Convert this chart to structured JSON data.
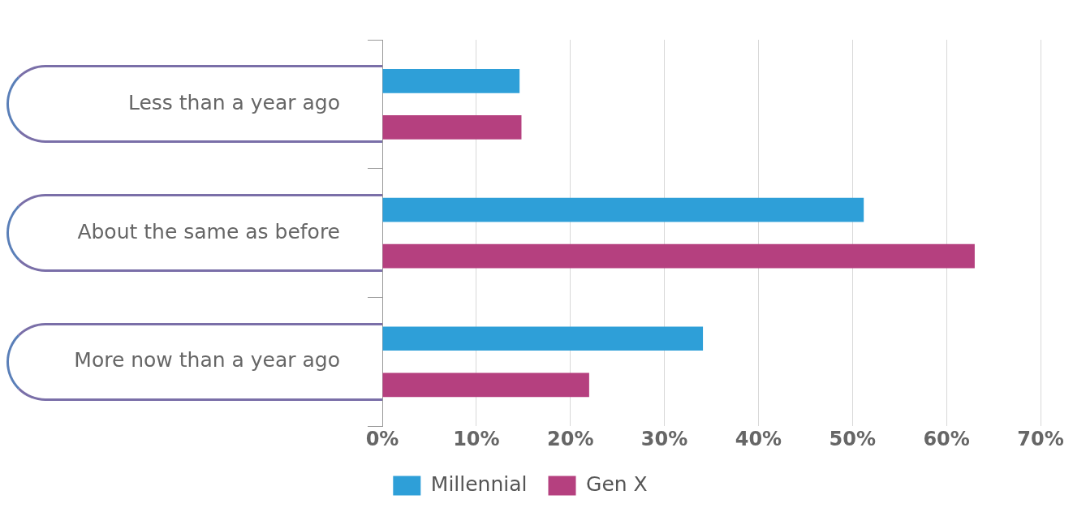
{
  "chart_data": {
    "type": "bar",
    "orientation": "horizontal",
    "categories": [
      "Less than a year ago",
      "About the same as before",
      "More now than a year ago"
    ],
    "series": [
      {
        "name": "Millennial",
        "color": "#2e9fd8",
        "values": [
          14.6,
          51.2,
          34.1
        ]
      },
      {
        "name": "Gen X",
        "color": "#b5407f",
        "values": [
          14.8,
          63.0,
          22.0
        ]
      }
    ],
    "xlim": [
      0,
      70
    ],
    "xticks": [
      {
        "value": 0,
        "label": "0%"
      },
      {
        "value": 10,
        "label": "10%"
      },
      {
        "value": 20,
        "label": "20%"
      },
      {
        "value": 30,
        "label": "30%"
      },
      {
        "value": 40,
        "label": "40%"
      },
      {
        "value": 50,
        "label": "50%"
      },
      {
        "value": 60,
        "label": "60%"
      },
      {
        "value": 70,
        "label": "70%"
      }
    ],
    "grid": "x",
    "legend": "bottom"
  }
}
